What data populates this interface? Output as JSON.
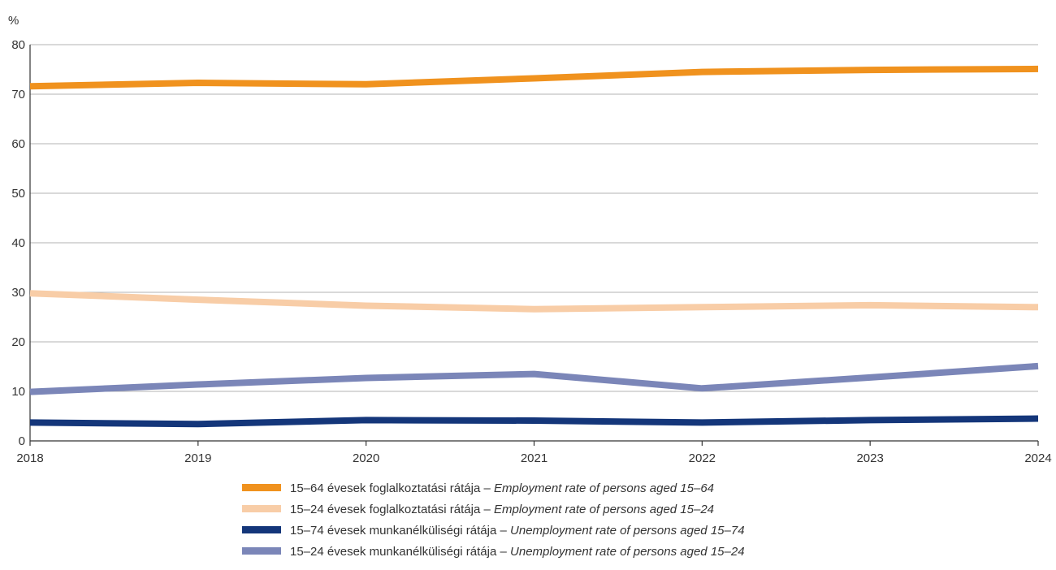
{
  "chart_data": {
    "type": "line",
    "unit_label": "%",
    "x": [
      "2018",
      "2019",
      "2020",
      "2021",
      "2022",
      "2023",
      "2024"
    ],
    "ylim": [
      0,
      80
    ],
    "yticks": [
      0,
      10,
      20,
      30,
      40,
      50,
      60,
      70,
      80
    ],
    "grid": "horizontal",
    "legend_position": "bottom",
    "series": [
      {
        "name_hu": "15–64 évesek foglalkoztatási rátája",
        "name_en": "Employment rate of persons aged 15–64",
        "color": "#f0921e",
        "values": [
          71.6,
          72.3,
          72.0,
          73.2,
          74.5,
          74.9,
          75.1
        ]
      },
      {
        "name_hu": "15–24 évesek foglalkoztatási rátája",
        "name_en": "Employment rate of persons aged 15–24",
        "color": "#f8cda7",
        "values": [
          29.8,
          28.5,
          27.3,
          26.6,
          27.0,
          27.4,
          27.0
        ]
      },
      {
        "name_hu": "15–74 évesek munkanélküliségi rátája",
        "name_en": "Unemployment rate of persons aged 15–74",
        "color": "#14367a",
        "values": [
          3.7,
          3.4,
          4.2,
          4.1,
          3.7,
          4.2,
          4.5
        ]
      },
      {
        "name_hu": "15–24 évesek munkanélküliségi rátája",
        "name_en": "Unemployment rate of persons aged 15–24",
        "color": "#7b86b8",
        "values": [
          9.9,
          11.4,
          12.7,
          13.5,
          10.6,
          12.8,
          15.1
        ]
      }
    ]
  }
}
